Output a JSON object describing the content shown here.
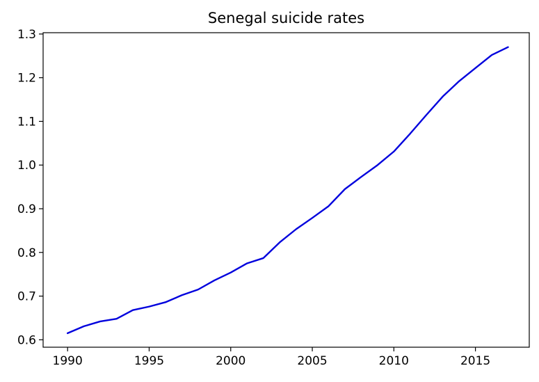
{
  "chart_data": {
    "type": "line",
    "title": "Senegal suicide rates",
    "xlabel": "",
    "ylabel": "",
    "xlim": [
      1988.5,
      2018.3
    ],
    "ylim": [
      0.583,
      1.303
    ],
    "xticks": [
      1990,
      1995,
      2000,
      2005,
      2010,
      2015
    ],
    "yticks": [
      0.6,
      0.7,
      0.8,
      0.9,
      1.0,
      1.1,
      1.2,
      1.3
    ],
    "ytick_labels": [
      "0.6",
      "0.7",
      "0.8",
      "0.9",
      "1.0",
      "1.1",
      "1.2",
      "1.3"
    ],
    "grid": false,
    "series": [
      {
        "color": "#0000dd",
        "x": [
          1990,
          1991,
          1992,
          1993,
          1994,
          1995,
          1996,
          1997,
          1998,
          1999,
          2000,
          2001,
          2002,
          2003,
          2004,
          2005,
          2006,
          2007,
          2008,
          2009,
          2010,
          2011,
          2012,
          2013,
          2014,
          2015,
          2016,
          2017
        ],
        "y": [
          0.615,
          0.631,
          0.642,
          0.648,
          0.668,
          0.676,
          0.686,
          0.702,
          0.715,
          0.736,
          0.754,
          0.775,
          0.787,
          0.823,
          0.853,
          0.879,
          0.906,
          0.945,
          0.973,
          1.0,
          1.031,
          1.072,
          1.115,
          1.157,
          1.192,
          1.222,
          1.252,
          1.27
        ]
      }
    ]
  }
}
